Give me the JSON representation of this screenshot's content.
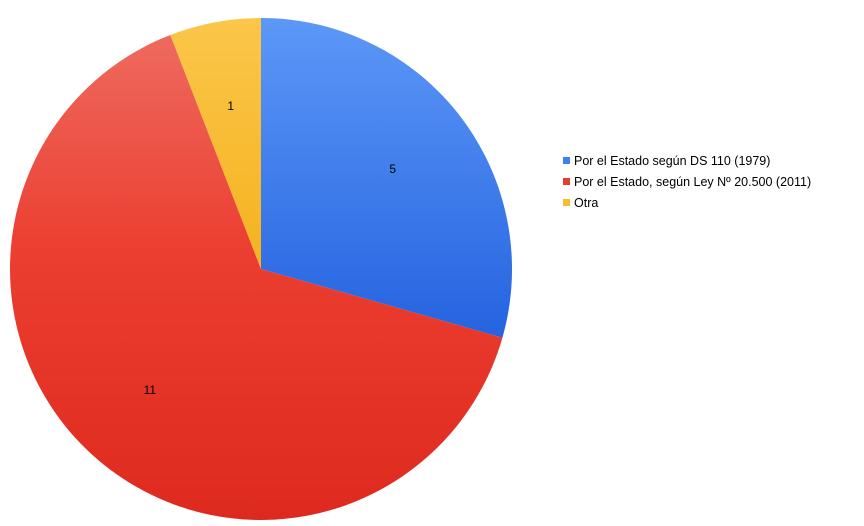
{
  "chart_data": {
    "type": "pie",
    "title": "",
    "slices": [
      {
        "label": "Por el Estado según DS 110 (1979)",
        "value": 5,
        "color": "#3B82F0"
      },
      {
        "label": "Por el Estado, según Ley Nº 20.500 (2011)",
        "value": 11,
        "color": "#E93A2C"
      },
      {
        "label": "Otra",
        "value": 1,
        "color": "#F8BC2E"
      }
    ],
    "legend_position": "right",
    "start_angle": "12 o'clock",
    "direction": "clockwise"
  }
}
